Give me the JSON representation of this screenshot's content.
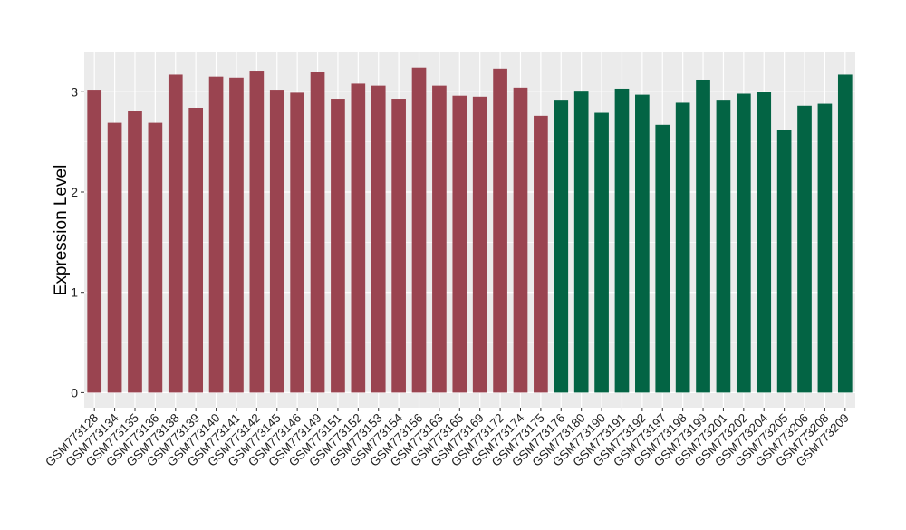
{
  "chart_data": {
    "type": "bar",
    "title": "",
    "xlabel": "",
    "ylabel": "Expression Level",
    "ylim": [
      -0.15,
      3.4
    ],
    "yticks": [
      0,
      1,
      2,
      3
    ],
    "grid": true,
    "legend": "none",
    "categories": [
      "GSM773128",
      "GSM773134",
      "GSM773135",
      "GSM773136",
      "GSM773138",
      "GSM773139",
      "GSM773140",
      "GSM773141",
      "GSM773142",
      "GSM773145",
      "GSM773146",
      "GSM773149",
      "GSM773151",
      "GSM773152",
      "GSM773153",
      "GSM773154",
      "GSM773156",
      "GSM773163",
      "GSM773165",
      "GSM773169",
      "GSM773172",
      "GSM773174",
      "GSM773175",
      "GSM773176",
      "GSM773180",
      "GSM773190",
      "GSM773191",
      "GSM773192",
      "GSM773197",
      "GSM773198",
      "GSM773199",
      "GSM773201",
      "GSM773202",
      "GSM773204",
      "GSM773205",
      "GSM773206",
      "GSM773208",
      "GSM773209"
    ],
    "values": [
      3.02,
      2.69,
      2.81,
      2.69,
      3.17,
      2.84,
      3.15,
      3.14,
      3.21,
      3.02,
      2.99,
      3.2,
      2.93,
      3.08,
      3.06,
      2.93,
      3.24,
      3.06,
      2.96,
      2.95,
      3.23,
      3.04,
      2.76,
      2.92,
      3.01,
      2.79,
      3.03,
      2.97,
      2.67,
      2.89,
      3.12,
      2.92,
      2.98,
      3.0,
      2.62,
      2.86,
      2.88,
      3.17
    ],
    "groups": [
      "a",
      "a",
      "a",
      "a",
      "a",
      "a",
      "a",
      "a",
      "a",
      "a",
      "a",
      "a",
      "a",
      "a",
      "a",
      "a",
      "a",
      "a",
      "a",
      "a",
      "a",
      "a",
      "a",
      "b",
      "b",
      "b",
      "b",
      "b",
      "b",
      "b",
      "b",
      "b",
      "b",
      "b",
      "b",
      "b",
      "b",
      "b"
    ],
    "colors": {
      "a": "#9a4450",
      "b": "#036444"
    },
    "panel_background": "#ebebeb",
    "grid_color": "#ffffff"
  }
}
